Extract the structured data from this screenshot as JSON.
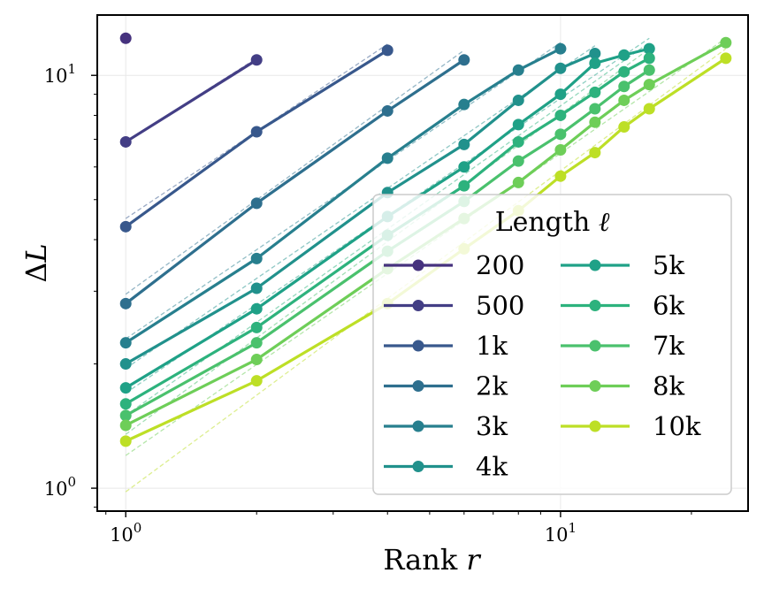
{
  "chart_data": {
    "type": "line",
    "xscale": "log",
    "yscale": "log",
    "xlabel": "Rank r",
    "ylabel": "ΔL",
    "xlim": [
      0.86,
      27
    ],
    "ylim": [
      0.88,
      14
    ],
    "x_ticks": [
      {
        "value": 1,
        "base": "10",
        "exp": "0"
      },
      {
        "value": 10,
        "base": "10",
        "exp": "1"
      }
    ],
    "y_ticks": [
      {
        "value": 1,
        "base": "10",
        "exp": "0"
      },
      {
        "value": 10,
        "base": "10",
        "exp": "1"
      }
    ],
    "grid": true,
    "legend": {
      "title": "Length ℓ",
      "placement": "lower-right",
      "columns": 2
    },
    "series": [
      {
        "name": "200",
        "color": "#46327e",
        "x": [
          1
        ],
        "y": [
          12.3
        ],
        "fit": null
      },
      {
        "name": "500",
        "color": "#433e85",
        "x": [
          1,
          2
        ],
        "y": [
          6.9,
          10.9
        ],
        "fit": [
          [
            1,
            6.9
          ],
          [
            2,
            11.0
          ]
        ]
      },
      {
        "name": "1k",
        "color": "#38588c",
        "x": [
          1,
          2,
          4
        ],
        "y": [
          4.3,
          7.3,
          11.5
        ],
        "fit": [
          [
            1,
            4.5
          ],
          [
            4,
            11.9
          ]
        ]
      },
      {
        "name": "2k",
        "color": "#2e6f8e",
        "x": [
          1,
          2,
          4,
          6
        ],
        "y": [
          2.8,
          4.9,
          8.2,
          10.9
        ],
        "fit": [
          [
            1,
            2.95
          ],
          [
            6,
            11.5
          ]
        ]
      },
      {
        "name": "3k",
        "color": "#277f8e",
        "x": [
          1,
          2,
          4,
          6,
          8,
          10
        ],
        "y": [
          2.25,
          3.6,
          6.3,
          8.5,
          10.3,
          11.6
        ],
        "fit": [
          [
            1,
            2.3
          ],
          [
            10,
            12.0
          ]
        ]
      },
      {
        "name": "4k",
        "color": "#21918c",
        "x": [
          1,
          2,
          4,
          6,
          8,
          10,
          12
        ],
        "y": [
          2.0,
          3.05,
          5.2,
          6.8,
          8.7,
          10.4,
          11.3
        ],
        "fit": [
          [
            1,
            1.95
          ],
          [
            12,
            11.8
          ]
        ]
      },
      {
        "name": "5k",
        "color": "#1fa187",
        "x": [
          1,
          2,
          4,
          6,
          8,
          10,
          12,
          14,
          16
        ],
        "y": [
          1.75,
          2.72,
          4.55,
          6.0,
          7.6,
          9.0,
          10.7,
          11.2,
          11.6
        ],
        "fit": [
          [
            1,
            1.7
          ],
          [
            16,
            12.3
          ]
        ]
      },
      {
        "name": "6k",
        "color": "#2db27d",
        "x": [
          1,
          2,
          4,
          6,
          8,
          10,
          12,
          14,
          16
        ],
        "y": [
          1.6,
          2.45,
          4.1,
          5.4,
          6.9,
          8.0,
          9.1,
          10.2,
          11.0
        ],
        "fit": [
          [
            1,
            1.5
          ],
          [
            16,
            12.0
          ]
        ]
      },
      {
        "name": "7k",
        "color": "#4ac16d",
        "x": [
          1,
          2,
          4,
          6,
          8,
          10,
          12,
          14,
          16
        ],
        "y": [
          1.5,
          2.25,
          3.75,
          4.95,
          6.2,
          7.2,
          8.3,
          9.4,
          10.3
        ],
        "fit": [
          [
            1,
            1.35
          ],
          [
            16,
            11.6
          ]
        ]
      },
      {
        "name": "8k",
        "color": "#6ece58",
        "x": [
          1,
          2,
          4,
          6,
          8,
          10,
          12,
          14,
          16,
          24
        ],
        "y": [
          1.42,
          2.05,
          3.4,
          4.5,
          5.5,
          6.6,
          7.7,
          8.7,
          9.5,
          12.0
        ],
        "fit": [
          [
            1,
            1.2
          ],
          [
            24,
            12.3
          ]
        ]
      },
      {
        "name": "10k",
        "color": "#bddf26",
        "x": [
          1,
          2,
          4,
          6,
          8,
          10,
          12,
          14,
          16,
          24
        ],
        "y": [
          1.3,
          1.82,
          2.8,
          3.8,
          4.7,
          5.7,
          6.5,
          7.5,
          8.3,
          11.0
        ],
        "fit": [
          [
            1,
            0.98
          ],
          [
            24,
            11.6
          ]
        ]
      }
    ]
  }
}
